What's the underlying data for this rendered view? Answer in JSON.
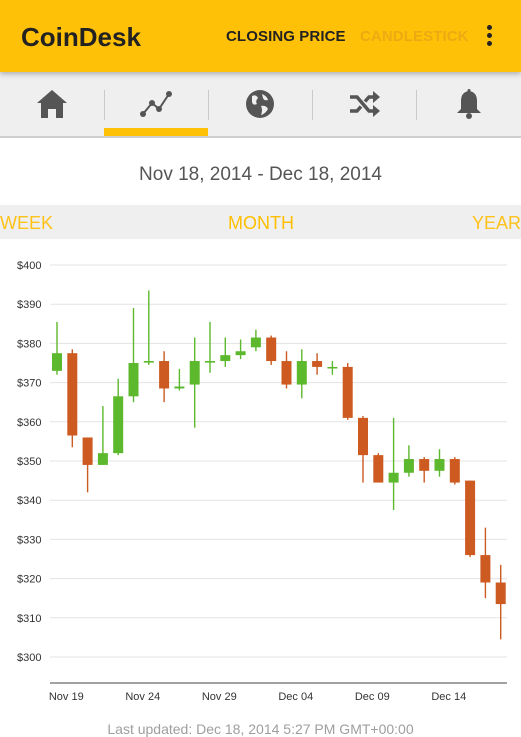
{
  "app": {
    "title": "CoinDesk",
    "actions": [
      "CLOSING PRICE",
      "CANDLESTICK"
    ],
    "overflow_icon": "more-vert-icon"
  },
  "tabs": [
    {
      "icon": "home-icon"
    },
    {
      "icon": "trend-line-icon",
      "selected": true
    },
    {
      "icon": "globe-icon"
    },
    {
      "icon": "shuffle-icon"
    },
    {
      "icon": "bell-icon"
    }
  ],
  "date_range": "Nov 18, 2014 - Dec 18, 2014",
  "range_options": {
    "week": "WEEK",
    "month": "MONTH",
    "year": "YEAR",
    "selected": "MONTH"
  },
  "colors": {
    "accent": "#ffc107",
    "up": "#5cb82c",
    "down": "#cc5a21"
  },
  "chart_data": {
    "type": "candlestick",
    "ylim": [
      300,
      400
    ],
    "y_ticks": [
      "$400",
      "$390",
      "$380",
      "$370",
      "$360",
      "$350",
      "$340",
      "$330",
      "$320",
      "$310",
      "$300"
    ],
    "x_labels": [
      "Nov 19",
      "Nov 24",
      "Nov 29",
      "Dec 04",
      "Dec 09",
      "Dec 14"
    ],
    "candles": [
      {
        "date": "Nov 18",
        "open": 373,
        "close": 377.5,
        "high": 385.5,
        "low": 372
      },
      {
        "date": "Nov 19",
        "open": 377.5,
        "close": 356.5,
        "high": 378.5,
        "low": 353.5
      },
      {
        "date": "Nov 20",
        "open": 356,
        "close": 349,
        "high": 356,
        "low": 342
      },
      {
        "date": "Nov 21",
        "open": 349,
        "close": 352,
        "high": 364,
        "low": 349
      },
      {
        "date": "Nov 22",
        "open": 352,
        "close": 366.5,
        "high": 371,
        "low": 351.5
      },
      {
        "date": "Nov 23",
        "open": 366.5,
        "close": 375,
        "high": 389,
        "low": 365
      },
      {
        "date": "Nov 24",
        "open": 375.5,
        "close": 375.5,
        "high": 393.5,
        "low": 374.5
      },
      {
        "date": "Nov 25",
        "open": 375.5,
        "close": 368.5,
        "high": 378,
        "low": 365
      },
      {
        "date": "Nov 26",
        "open": 368.5,
        "close": 369,
        "high": 373.5,
        "low": 368
      },
      {
        "date": "Nov 27",
        "open": 369.5,
        "close": 375.5,
        "high": 381.5,
        "low": 358.5
      },
      {
        "date": "Nov 28",
        "open": 375.5,
        "close": 375.5,
        "high": 385.5,
        "low": 372.5
      },
      {
        "date": "Nov 29",
        "open": 375.5,
        "close": 377,
        "high": 381.5,
        "low": 374
      },
      {
        "date": "Nov 30",
        "open": 377,
        "close": 378,
        "high": 381,
        "low": 376
      },
      {
        "date": "Dec 01",
        "open": 379,
        "close": 381.5,
        "high": 383.5,
        "low": 378
      },
      {
        "date": "Dec 02",
        "open": 381.5,
        "close": 375.5,
        "high": 382,
        "low": 374.5
      },
      {
        "date": "Dec 03",
        "open": 375.5,
        "close": 369.5,
        "high": 378,
        "low": 368.5
      },
      {
        "date": "Dec 04",
        "open": 369.5,
        "close": 375.5,
        "high": 378.5,
        "low": 366
      },
      {
        "date": "Dec 05",
        "open": 375.5,
        "close": 374,
        "high": 377.5,
        "low": 372
      },
      {
        "date": "Dec 06",
        "open": 374,
        "close": 374,
        "high": 375.5,
        "low": 372
      },
      {
        "date": "Dec 07",
        "open": 374,
        "close": 361,
        "high": 375,
        "low": 360.5
      },
      {
        "date": "Dec 08",
        "open": 361,
        "close": 351.5,
        "high": 361.5,
        "low": 344.5
      },
      {
        "date": "Dec 09",
        "open": 351.5,
        "close": 344.5,
        "high": 352,
        "low": 344.5
      },
      {
        "date": "Dec 10",
        "open": 344.5,
        "close": 347,
        "high": 361,
        "low": 337.5
      },
      {
        "date": "Dec 11",
        "open": 347,
        "close": 350.5,
        "high": 354,
        "low": 346
      },
      {
        "date": "Dec 12",
        "open": 350.5,
        "close": 347.5,
        "high": 351,
        "low": 344.5
      },
      {
        "date": "Dec 13",
        "open": 347.5,
        "close": 350.5,
        "high": 353,
        "low": 346
      },
      {
        "date": "Dec 14",
        "open": 350.5,
        "close": 344.5,
        "high": 351,
        "low": 344
      },
      {
        "date": "Dec 15",
        "open": 345,
        "close": 326,
        "high": 345,
        "low": 325.5
      },
      {
        "date": "Dec 16",
        "open": 326,
        "close": 319,
        "high": 333,
        "low": 315
      },
      {
        "date": "Dec 17",
        "open": 319,
        "close": 313.5,
        "high": 323.5,
        "low": 304.5
      }
    ]
  },
  "last_updated": "Last updated: Dec 18, 2014 5:27 PM GMT+00:00"
}
